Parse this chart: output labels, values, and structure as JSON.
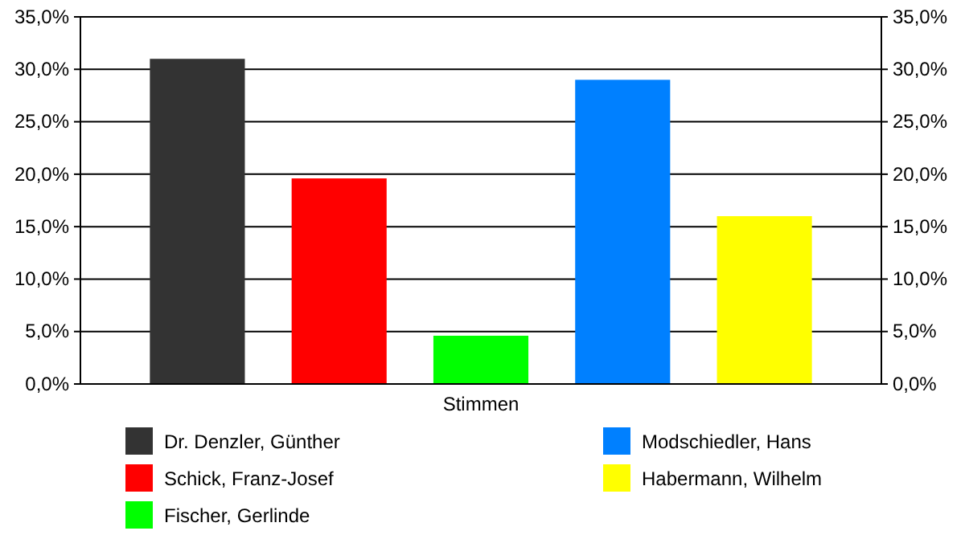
{
  "chart_data": {
    "type": "bar",
    "categories": [
      "Stimmen"
    ],
    "series": [
      {
        "name": "Dr. Denzler, Günther",
        "color": "#333333",
        "values": [
          31.0
        ]
      },
      {
        "name": "Schick, Franz-Josef",
        "color": "#ff0000",
        "values": [
          19.6
        ]
      },
      {
        "name": "Fischer, Gerlinde",
        "color": "#00ff00",
        "values": [
          4.6
        ]
      },
      {
        "name": "Modschiedler, Hans",
        "color": "#0080ff",
        "values": [
          29.0
        ]
      },
      {
        "name": "Habermann, Wilhelm",
        "color": "#ffff00",
        "values": [
          16.0
        ]
      }
    ],
    "ylim": [
      0,
      35
    ],
    "yticks": [
      {
        "value": 0,
        "label": "0,0%"
      },
      {
        "value": 5,
        "label": "5,0%"
      },
      {
        "value": 10,
        "label": "10,0%"
      },
      {
        "value": 15,
        "label": "15,0%"
      },
      {
        "value": 20,
        "label": "20,0%"
      },
      {
        "value": 25,
        "label": "25,0%"
      },
      {
        "value": 30,
        "label": "30,0%"
      },
      {
        "value": 35,
        "label": "35,0%"
      }
    ],
    "grid": "y",
    "legend": "bottom"
  }
}
